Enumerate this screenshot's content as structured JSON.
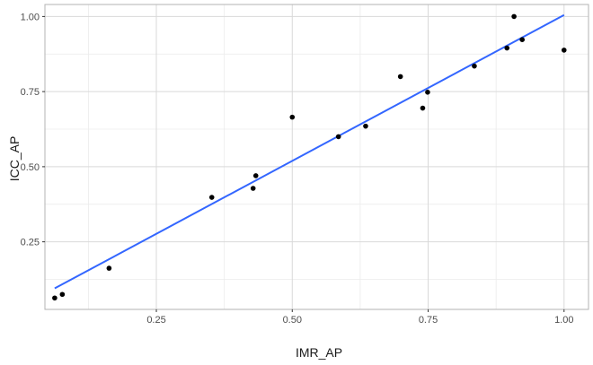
{
  "chart_data": {
    "type": "scatter",
    "title": "",
    "xlabel": "IMR_AP",
    "ylabel": "ICC_AP",
    "xlim": [
      0.045,
      1.045
    ],
    "ylim": [
      0.025,
      1.04
    ],
    "x_ticks": [
      0.25,
      0.5,
      0.75,
      1.0
    ],
    "y_ticks": [
      0.25,
      0.5,
      0.75,
      1.0
    ],
    "x_tick_labels": [
      "0.25",
      "0.50",
      "0.75",
      "1.00"
    ],
    "y_tick_labels": [
      "0.25",
      "0.50",
      "0.75",
      "1.00"
    ],
    "grid": true,
    "points": {
      "x": [
        0.063,
        0.077,
        0.163,
        0.352,
        0.428,
        0.433,
        0.5,
        0.585,
        0.635,
        0.699,
        0.74,
        0.749,
        0.835,
        0.895,
        0.908,
        0.923,
        1.0
      ],
      "y": [
        0.063,
        0.075,
        0.162,
        0.398,
        0.428,
        0.47,
        0.665,
        0.6,
        0.635,
        0.8,
        0.695,
        0.748,
        0.835,
        0.895,
        1.0,
        0.923,
        0.888
      ],
      "color": "#000000"
    },
    "fit_line": {
      "x": [
        0.063,
        1.0
      ],
      "y": [
        0.095,
        1.005
      ],
      "color": "#3366ff"
    }
  }
}
